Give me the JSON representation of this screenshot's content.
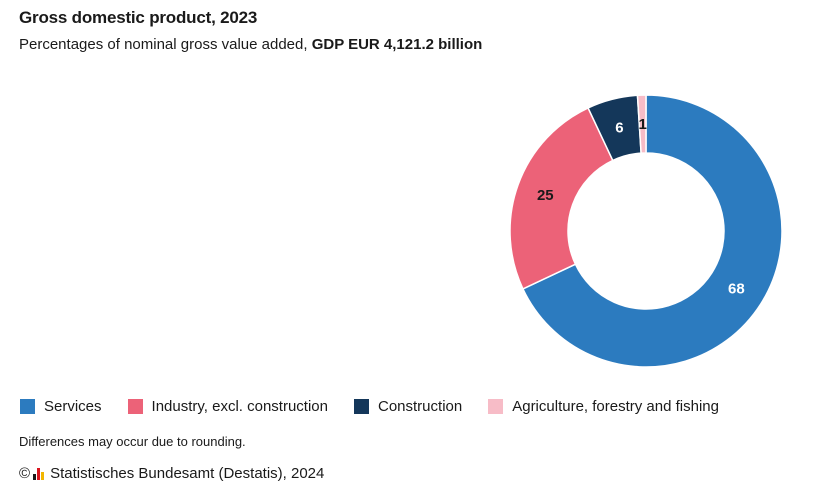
{
  "header": {
    "title": "Gross domestic product, 2023",
    "subtitle_prefix": "Percentages of nominal gross value added,",
    "subtitle_bold": "GDP EUR 4,121.2 billion"
  },
  "chart_data": {
    "type": "pie",
    "variant": "donut",
    "title": "Gross domestic product, 2023",
    "categories": [
      "Services",
      "Industry, excl. construction",
      "Construction",
      "Agriculture, forestry and fishing"
    ],
    "values": [
      68,
      25,
      6,
      1
    ],
    "value_labels": [
      "68",
      "25",
      "6",
      "1"
    ],
    "colors": [
      "#2c7bbf",
      "#ec6278",
      "#14375a",
      "#f7bcc7"
    ],
    "label_colors": [
      "#ffffff",
      "#1a1a1a",
      "#ffffff",
      "#1a1a1a"
    ],
    "legend_position": "bottom-left",
    "start_angle": "top, clockwise from Services"
  },
  "legend": {
    "items": [
      {
        "label": "Services",
        "color": "#2c7bbf"
      },
      {
        "label": "Industry, excl. construction",
        "color": "#ec6278"
      },
      {
        "label": "Construction",
        "color": "#14375a"
      },
      {
        "label": "Agriculture, forestry and fishing",
        "color": "#f7bcc7"
      }
    ]
  },
  "footer": {
    "note": "Differences may occur due to rounding.",
    "copyright_symbol": "©",
    "logo_icon": "destatis-logo-icon",
    "source": "Statistisches Bundesamt (Destatis), 2024"
  }
}
